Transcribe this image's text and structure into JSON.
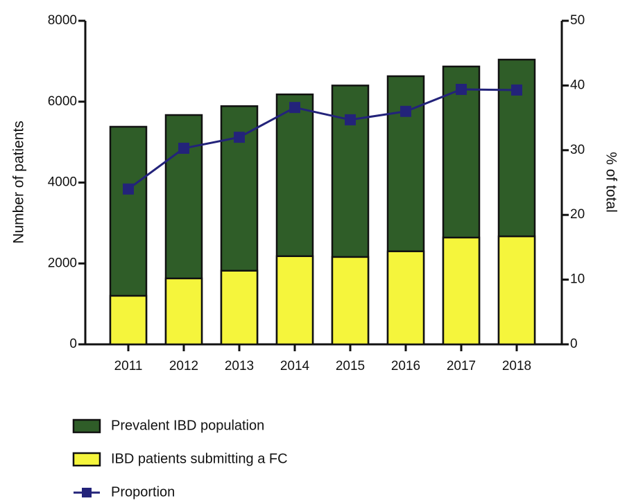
{
  "chart_data": {
    "type": "bar",
    "categories": [
      "2011",
      "2012",
      "2013",
      "2014",
      "2015",
      "2016",
      "2017",
      "2018"
    ],
    "series": [
      {
        "name": "Prevalent IBD population",
        "color": "#2f5d28",
        "type": "bar",
        "values": [
          5380,
          5670,
          5890,
          6180,
          6400,
          6630,
          6870,
          7040
        ]
      },
      {
        "name": "IBD patients submitting a FC",
        "color": "#f5f53c",
        "type": "bar",
        "values": [
          1200,
          1630,
          1820,
          2180,
          2160,
          2300,
          2640,
          2670
        ]
      },
      {
        "name": "Proportion",
        "color": "#23237a",
        "type": "line",
        "axis": "y2",
        "values": [
          24.0,
          30.3,
          32.0,
          36.6,
          34.7,
          36.0,
          39.4,
          39.3
        ]
      }
    ],
    "ylabel": "Number of patients",
    "y2label": "% of total",
    "ylim": [
      0,
      8000
    ],
    "yticks": [
      0,
      2000,
      4000,
      6000,
      8000
    ],
    "y2lim": [
      0,
      50
    ],
    "y2ticks": [
      0,
      10,
      20,
      30,
      40,
      50
    ],
    "legend": "bottom"
  }
}
